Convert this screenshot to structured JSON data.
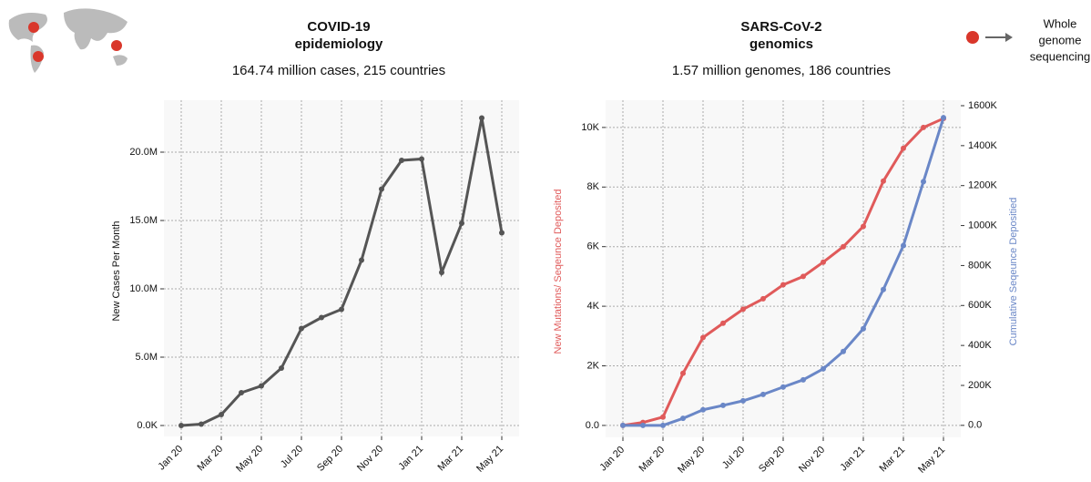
{
  "chart_data": [
    {
      "type": "line",
      "title": [
        "COVID-19",
        "epidemiology"
      ],
      "subtitle": "164.74 million cases, 215 countries",
      "y_label": "New Cases Per Month",
      "categories": [
        "Jan 20",
        null,
        "Mar 20",
        null,
        "May 20",
        null,
        "Jul 20",
        null,
        "Sep 20",
        null,
        "Nov 20",
        null,
        "Jan 21",
        null,
        "Mar 21",
        null,
        "May 21"
      ],
      "series": [
        {
          "name": "New Cases Per Month",
          "color": "#555555",
          "values": [
            0,
            100000,
            800000,
            2400000,
            2900000,
            4200000,
            7100000,
            7900000,
            8500000,
            12100000,
            17300000,
            19400000,
            19500000,
            11200000,
            14800000,
            22500000,
            14100000
          ]
        }
      ],
      "ylim": [
        -800000,
        23400000
      ],
      "yticks": [
        {
          "value": 0,
          "label": "0.0K"
        },
        {
          "value": 5000000,
          "label": "5.0M"
        },
        {
          "value": 10000000,
          "label": "10.0M"
        },
        {
          "value": 15000000,
          "label": "15.0M"
        },
        {
          "value": 20000000,
          "label": "20.0M"
        }
      ],
      "grid": true
    },
    {
      "type": "line",
      "title": [
        "SARS-CoV-2",
        "genomics"
      ],
      "subtitle": "1.57 million genomes, 186 countries",
      "y_label": "New Mutations/ Seqeunce Deposited",
      "y2_label": "Cumulative Seqeunce Depositied",
      "annotation": [
        "Whole",
        "genome",
        "sequencing"
      ],
      "categories": [
        "Jan 20",
        null,
        "Mar 20",
        null,
        "May 20",
        null,
        "Jul 20",
        null,
        "Sep 20",
        null,
        "Nov 20",
        null,
        "Jan 21",
        null,
        "Mar 21",
        null,
        "May 21"
      ],
      "series": [
        {
          "name": "New Mutations/ Seqeunce Deposited",
          "color": "#e05a5a",
          "values": [
            0,
            100,
            280,
            1750,
            2950,
            3430,
            3900,
            4250,
            4720,
            5000,
            5480,
            6000,
            6680,
            8200,
            9300,
            10000,
            10300
          ]
        },
        {
          "name": "Cumulative Seqeunce Depositied",
          "color": "#6a87c7",
          "axis": "y2",
          "values": [
            0,
            0,
            0,
            35000,
            78000,
            100000,
            123000,
            155000,
            192000,
            228000,
            283000,
            370000,
            484000,
            680000,
            900000,
            1220000,
            1540000
          ]
        }
      ],
      "ylim": [
        -400,
        10730
      ],
      "yticks": [
        {
          "value": 0,
          "label": "0.0"
        },
        {
          "value": 2000,
          "label": "2K"
        },
        {
          "value": 4000,
          "label": "4K"
        },
        {
          "value": 6000,
          "label": "6K"
        },
        {
          "value": 8000,
          "label": "8K"
        },
        {
          "value": 10000,
          "label": "10K"
        }
      ],
      "y2lim": [
        -60000,
        1600000
      ],
      "y2ticks": [
        {
          "value": 0,
          "label": "0.0"
        },
        {
          "value": 200000,
          "label": "200K"
        },
        {
          "value": 400000,
          "label": "400K"
        },
        {
          "value": 600000,
          "label": "600K"
        },
        {
          "value": 800000,
          "label": "800K"
        },
        {
          "value": 1000000,
          "label": "1000K"
        },
        {
          "value": 1200000,
          "label": "1200K"
        },
        {
          "value": 1400000,
          "label": "1400K"
        },
        {
          "value": 1600000,
          "label": "1600K"
        }
      ],
      "grid": true
    }
  ]
}
